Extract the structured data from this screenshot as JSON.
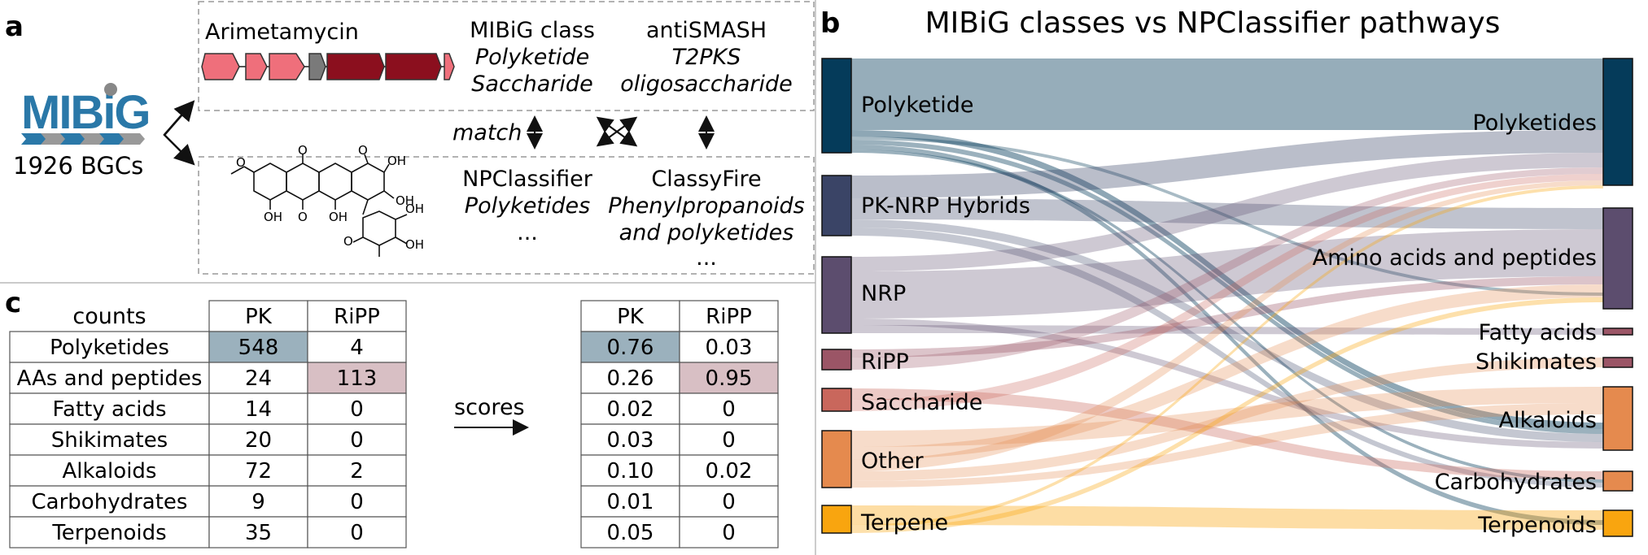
{
  "panels": {
    "a": "a",
    "b": "b",
    "c": "c"
  },
  "panel_a": {
    "logo_text": "MIBiG",
    "bgc_count": "1926 BGCs",
    "cluster_name": "Arimetamycin",
    "mibig_header": "MIBiG class",
    "mibig_values": [
      "Polyketide",
      "Saccharide"
    ],
    "antismash_header": "antiSMASH",
    "antismash_values": [
      "T2PKS",
      "oligosaccharide"
    ],
    "match_label": "match",
    "npclassifier_header": "NPClassifier",
    "npclassifier_values": [
      "Polyketides",
      "..."
    ],
    "classyfire_header": "ClassyFire",
    "classyfire_values": [
      "Phenylpropanoids",
      "and polyketides",
      "..."
    ],
    "gene_colors": {
      "light": "#ef6f7b",
      "dark": "#8b0f1e",
      "grey": "#7a7a7a"
    },
    "structure_labels": [
      "O",
      "OH",
      "O",
      "OH",
      "OH",
      "O",
      "O",
      "OH",
      "OH",
      "OH",
      "OH",
      "O"
    ]
  },
  "panel_b": {
    "title": "MIBiG classes vs NPClassifier pathways",
    "chart_data": {
      "type": "sankey",
      "title": "MIBiG classes vs NPClassifier pathways",
      "left_nodes": [
        {
          "name": "Polyketide",
          "color": "#053b5a"
        },
        {
          "name": "PK-NRP Hybrids",
          "color": "#3a4466"
        },
        {
          "name": "NRP",
          "color": "#5c4d6e"
        },
        {
          "name": "RiPP",
          "color": "#9b5566"
        },
        {
          "name": "Saccharide",
          "color": "#c9675c"
        },
        {
          "name": "Other",
          "color": "#e58a4e"
        },
        {
          "name": "Terpene",
          "color": "#f9a50f"
        }
      ],
      "right_nodes": [
        {
          "name": "Polyketides",
          "color": "#053b5a"
        },
        {
          "name": "Amino acids and peptides",
          "color": "#5c4d6e"
        },
        {
          "name": "Fatty acids",
          "color": "#9b5566"
        },
        {
          "name": "Shikimates",
          "color": "#9b5566"
        },
        {
          "name": "Alkaloids",
          "color": "#e58a4e"
        },
        {
          "name": "Carbohydrates",
          "color": "#e58a4e"
        },
        {
          "name": "Terpenoids",
          "color": "#f9a50f"
        }
      ]
    }
  },
  "panel_c": {
    "counts_label": "counts",
    "scores_label": "scores",
    "col_headers": [
      "PK",
      "RiPP"
    ],
    "rows": [
      "Polyketides",
      "AAs and peptides",
      "Fatty acids",
      "Shikimates",
      "Alkaloids",
      "Carbohydrates",
      "Terpenoids"
    ],
    "counts": [
      [
        "548",
        "4"
      ],
      [
        "24",
        "113"
      ],
      [
        "14",
        "0"
      ],
      [
        "20",
        "0"
      ],
      [
        "72",
        "2"
      ],
      [
        "9",
        "0"
      ],
      [
        "35",
        "0"
      ]
    ],
    "scores": [
      [
        "0.76",
        "0.03"
      ],
      [
        "0.26",
        "0.95"
      ],
      [
        "0.02",
        "0"
      ],
      [
        "0.03",
        "0"
      ],
      [
        "0.10",
        "0.02"
      ],
      [
        "0.01",
        "0"
      ],
      [
        "0.05",
        "0"
      ]
    ],
    "highlight_pk": "#9bb1bd",
    "highlight_ripp": "#d8bfc4"
  }
}
